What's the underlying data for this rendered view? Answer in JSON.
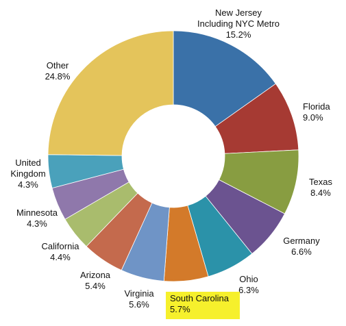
{
  "chart_data": {
    "type": "pie",
    "donut": true,
    "slices": [
      {
        "name": "New Jersey Including NYC Metro",
        "lines": [
          "New Jersey",
          "Including NYC Metro",
          "15.2%"
        ],
        "value": 15.2,
        "color": "#3a71a8"
      },
      {
        "name": "Florida",
        "lines": [
          "Florida",
          "9.0%"
        ],
        "value": 9.0,
        "color": "#a63a33"
      },
      {
        "name": "Texas",
        "lines": [
          "Texas",
          "8.4%"
        ],
        "value": 8.4,
        "color": "#889d41"
      },
      {
        "name": "Germany",
        "lines": [
          "Germany",
          "6.6%"
        ],
        "value": 6.6,
        "color": "#6b5390"
      },
      {
        "name": "Ohio",
        "lines": [
          "Ohio",
          "6.3%"
        ],
        "value": 6.3,
        "color": "#2b92a9"
      },
      {
        "name": "South Carolina",
        "lines": [
          "South Carolina",
          "5.7%"
        ],
        "value": 5.7,
        "color": "#d37a2a",
        "highlight": true,
        "highlight_color": "#f6f02c"
      },
      {
        "name": "Virginia",
        "lines": [
          "Virginia",
          "5.6%"
        ],
        "value": 5.6,
        "color": "#6f94c6"
      },
      {
        "name": "Arizona",
        "lines": [
          "Arizona",
          "5.4%"
        ],
        "value": 5.4,
        "color": "#c46a4d"
      },
      {
        "name": "California",
        "lines": [
          "California",
          "4.4%"
        ],
        "value": 4.4,
        "color": "#a9bc6d"
      },
      {
        "name": "Minnesota",
        "lines": [
          "Minnesota",
          "4.3%"
        ],
        "value": 4.3,
        "color": "#8f78ab"
      },
      {
        "name": "United Kingdom",
        "lines": [
          "United",
          "Kingdom",
          "4.3%"
        ],
        "value": 4.3,
        "color": "#4aa1bb"
      },
      {
        "name": "Other",
        "lines": [
          "Other",
          "24.8%"
        ],
        "value": 24.8,
        "color": "#e4c45b"
      }
    ]
  }
}
